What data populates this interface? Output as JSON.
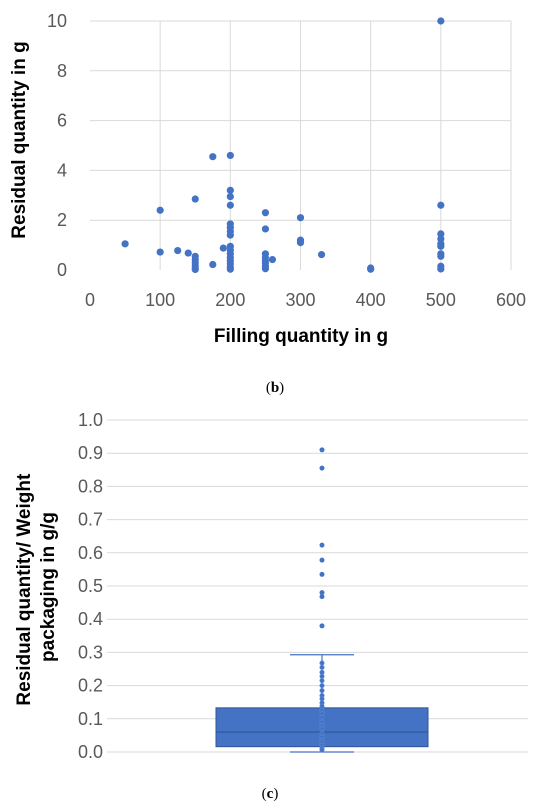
{
  "chart_data": [
    {
      "type": "scatter",
      "caption": {
        "open": "(",
        "letter": "b",
        "close": ")"
      },
      "title": "",
      "xlabel": "Filling quantity in g",
      "ylabel": "Residual quantity in g",
      "xlim": [
        0,
        600
      ],
      "ylim": [
        0,
        10
      ],
      "xticks": [
        "0",
        "100",
        "200",
        "300",
        "400",
        "500",
        "600"
      ],
      "yticks": [
        "0",
        "2",
        "4",
        "6",
        "8",
        "10"
      ],
      "grid": "vertical and horizontal",
      "color": "#4472c4",
      "points": [
        [
          50,
          1.05
        ],
        [
          100,
          2.4
        ],
        [
          100,
          0.72
        ],
        [
          125,
          0.78
        ],
        [
          140,
          0.68
        ],
        [
          150,
          2.85
        ],
        [
          150,
          0.55
        ],
        [
          150,
          0.42
        ],
        [
          150,
          0.3
        ],
        [
          150,
          0.18
        ],
        [
          150,
          0.08
        ],
        [
          150,
          0.02
        ],
        [
          175,
          4.55
        ],
        [
          175,
          0.22
        ],
        [
          190,
          0.88
        ],
        [
          200,
          4.6
        ],
        [
          200,
          3.2
        ],
        [
          200,
          2.95
        ],
        [
          200,
          2.6
        ],
        [
          200,
          1.85
        ],
        [
          200,
          1.7
        ],
        [
          200,
          1.55
        ],
        [
          200,
          1.4
        ],
        [
          200,
          0.95
        ],
        [
          200,
          0.8
        ],
        [
          200,
          0.65
        ],
        [
          200,
          0.5
        ],
        [
          200,
          0.38
        ],
        [
          200,
          0.25
        ],
        [
          200,
          0.12
        ],
        [
          200,
          0.03
        ],
        [
          250,
          2.3
        ],
        [
          250,
          1.65
        ],
        [
          250,
          0.65
        ],
        [
          250,
          0.5
        ],
        [
          250,
          0.38
        ],
        [
          250,
          0.28
        ],
        [
          250,
          0.15
        ],
        [
          250,
          0.05
        ],
        [
          260,
          0.42
        ],
        [
          300,
          2.1
        ],
        [
          300,
          1.2
        ],
        [
          300,
          1.1
        ],
        [
          330,
          0.62
        ],
        [
          400,
          0.08
        ],
        [
          400,
          0.03
        ],
        [
          500,
          10.0
        ],
        [
          500,
          2.6
        ],
        [
          500,
          1.45
        ],
        [
          500,
          1.25
        ],
        [
          500,
          1.05
        ],
        [
          500,
          0.95
        ],
        [
          500,
          0.65
        ],
        [
          500,
          0.55
        ],
        [
          500,
          0.15
        ],
        [
          500,
          0.04
        ]
      ]
    },
    {
      "type": "box",
      "caption": {
        "open": "(",
        "letter": "c",
        "close": ")"
      },
      "title": "",
      "xlabel": "",
      "ylabel_lines": [
        "Residual quantity/ Weight",
        "packaging in g/g"
      ],
      "ylim": [
        0,
        1.0
      ],
      "yticks": [
        "0.0",
        "0.1",
        "0.2",
        "0.3",
        "0.4",
        "0.5",
        "0.6",
        "0.7",
        "0.8",
        "0.9",
        "1.0"
      ],
      "grid": "horizontal",
      "color": "#4472c4",
      "box": {
        "whisker_low": 0.0,
        "q1": 0.016,
        "median": 0.06,
        "q3": 0.133,
        "whisker_high": 0.293
      },
      "outliers": [
        0.91,
        0.855,
        0.623,
        0.578,
        0.535,
        0.48,
        0.468,
        0.38
      ],
      "inner_points": [
        0.268,
        0.255,
        0.24,
        0.228,
        0.215,
        0.2,
        0.185,
        0.17,
        0.16,
        0.148,
        0.138,
        0.125,
        0.115,
        0.105,
        0.09,
        0.08,
        0.07,
        0.055,
        0.045,
        0.035,
        0.028,
        0.02,
        0.012,
        0.006
      ]
    }
  ]
}
